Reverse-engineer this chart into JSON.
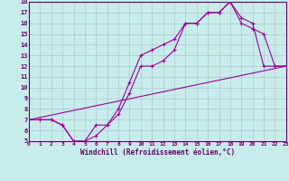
{
  "bg_color": "#c8ecec",
  "line_color": "#990099",
  "grid_color": "#b0c8c8",
  "tick_color": "#660066",
  "xlabel": "Windchill (Refroidissement éolien,°C)",
  "ylim": [
    5,
    18
  ],
  "xlim": [
    0,
    23
  ],
  "yticks": [
    5,
    6,
    7,
    8,
    9,
    10,
    11,
    12,
    13,
    14,
    15,
    16,
    17,
    18
  ],
  "xticks": [
    0,
    1,
    2,
    3,
    4,
    5,
    6,
    7,
    8,
    9,
    10,
    11,
    12,
    13,
    14,
    15,
    16,
    17,
    18,
    19,
    20,
    21,
    22,
    23
  ],
  "line1_x": [
    0,
    1,
    2,
    3,
    4,
    5,
    6,
    7,
    8,
    9,
    10,
    11,
    12,
    13,
    14,
    15,
    16,
    17,
    18,
    19,
    20,
    21,
    22,
    23
  ],
  "line1_y": [
    7,
    7,
    7,
    6.5,
    5,
    5,
    6.5,
    6.5,
    8,
    10.5,
    13,
    13.5,
    14,
    14.5,
    16,
    16,
    17,
    17,
    18,
    16,
    15.5,
    15,
    12,
    12
  ],
  "line2_x": [
    0,
    1,
    2,
    3,
    4,
    5,
    6,
    7,
    8,
    9,
    10,
    11,
    12,
    13,
    14,
    15,
    16,
    17,
    18,
    19,
    20,
    21,
    22,
    23
  ],
  "line2_y": [
    7,
    7,
    7,
    6.5,
    5,
    5,
    5.5,
    6.5,
    7.5,
    9.5,
    12,
    12,
    12.5,
    13.5,
    16,
    16,
    17,
    17,
    18,
    16.5,
    16,
    12,
    12,
    12
  ],
  "line3_x": [
    0,
    23
  ],
  "line3_y": [
    7,
    12
  ]
}
